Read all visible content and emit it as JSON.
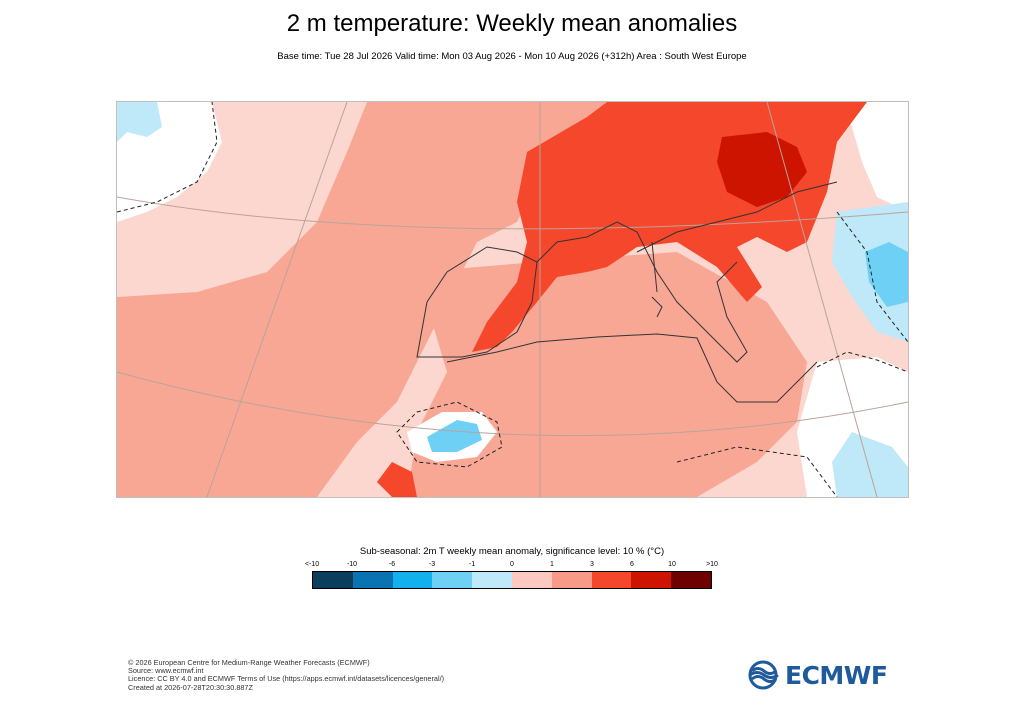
{
  "title": "2 m temperature: Weekly mean anomalies",
  "subtitle": "Base time: Tue 28 Jul 2026 Valid time: Mon 03 Aug 2026 - Mon 10 Aug 2026 (+312h) Area : South West Europe",
  "legend": {
    "title": "Sub-seasonal: 2m T weekly mean anomaly, significance level: 10 % (°C)",
    "ticks": [
      "<-10",
      "-10",
      "-6",
      "-3",
      "-1",
      "0",
      "1",
      "3",
      "6",
      "10",
      ">10"
    ],
    "colors": [
      "#0b3d5c",
      "#0a74b3",
      "#13b0ee",
      "#6fd0f5",
      "#bfe9f9",
      "#ffffff",
      "#fcc8bf",
      "#f79b88",
      "#f4472b",
      "#cc1400",
      "#6e0000"
    ]
  },
  "map": {
    "area": "South West Europe",
    "land_fill": "#f9a795",
    "ocean_fill": "#fcd7d0",
    "hot_fill": "#f4472b",
    "very_hot_fill": "#cc1400",
    "cool_fill": "#bfe9f9",
    "neutral_fill": "#ffffff"
  },
  "footer": {
    "copyright": "© 2026 European Centre for Medium-Range Weather Forecasts (ECMWF)",
    "source": "Source: www.ecmwf.int",
    "licence": "Licence: CC BY 4.0 and ECMWF Terms of Use (https://apps.ecmwf.int/datasets/licences/general/)",
    "created": "Created at 2026-07-28T20:30:30.887Z"
  },
  "logo": {
    "text": "ECMWF",
    "color": "#1f5a9c"
  }
}
